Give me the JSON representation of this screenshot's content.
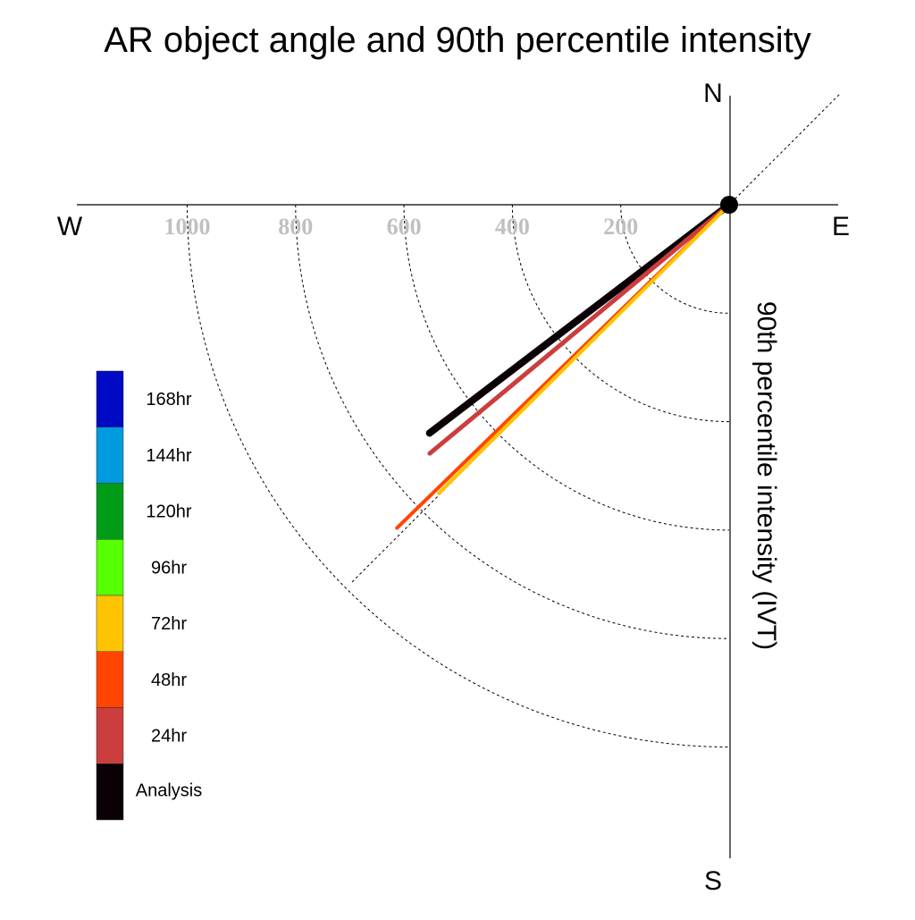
{
  "chart_data": {
    "type": "polar-vector",
    "title": "AR object angle and 90th percentile intensity",
    "ylabel": "90th percentile intensity (IVT)",
    "compass": {
      "north": "N",
      "south": "S",
      "east": "E",
      "west": "W"
    },
    "radial_ticks": [
      200,
      400,
      600,
      800,
      1000
    ],
    "radial_range": [
      0,
      1200
    ],
    "reference_line_angle_deg": 45,
    "series": [
      {
        "name": "Analysis",
        "angle_deg": 37.3,
        "intensity": 695,
        "color": "#0a0006"
      },
      {
        "name": "24hr",
        "angle_deg": 39.7,
        "intensity": 718,
        "color": "#cc3d3d"
      },
      {
        "name": "48hr",
        "angle_deg": 44.2,
        "intensity": 855,
        "color": "#ff4500"
      },
      {
        "name": "72hr",
        "angle_deg": 44.8,
        "intensity": 755,
        "color": "#ffc400"
      }
    ],
    "legend": [
      {
        "label": "168hr",
        "color": "#0009c4"
      },
      {
        "label": "144hr",
        "color": "#009ade"
      },
      {
        "label": "120hr",
        "color": "#009c17"
      },
      {
        "label": "96hr",
        "color": "#58ff00"
      },
      {
        "label": "72hr",
        "color": "#ffc400"
      },
      {
        "label": "48hr",
        "color": "#ff4500"
      },
      {
        "label": "24hr",
        "color": "#cc3d3d"
      },
      {
        "label": "Analysis",
        "color": "#0a0006"
      }
    ],
    "legend_position": "left",
    "grid": true
  }
}
